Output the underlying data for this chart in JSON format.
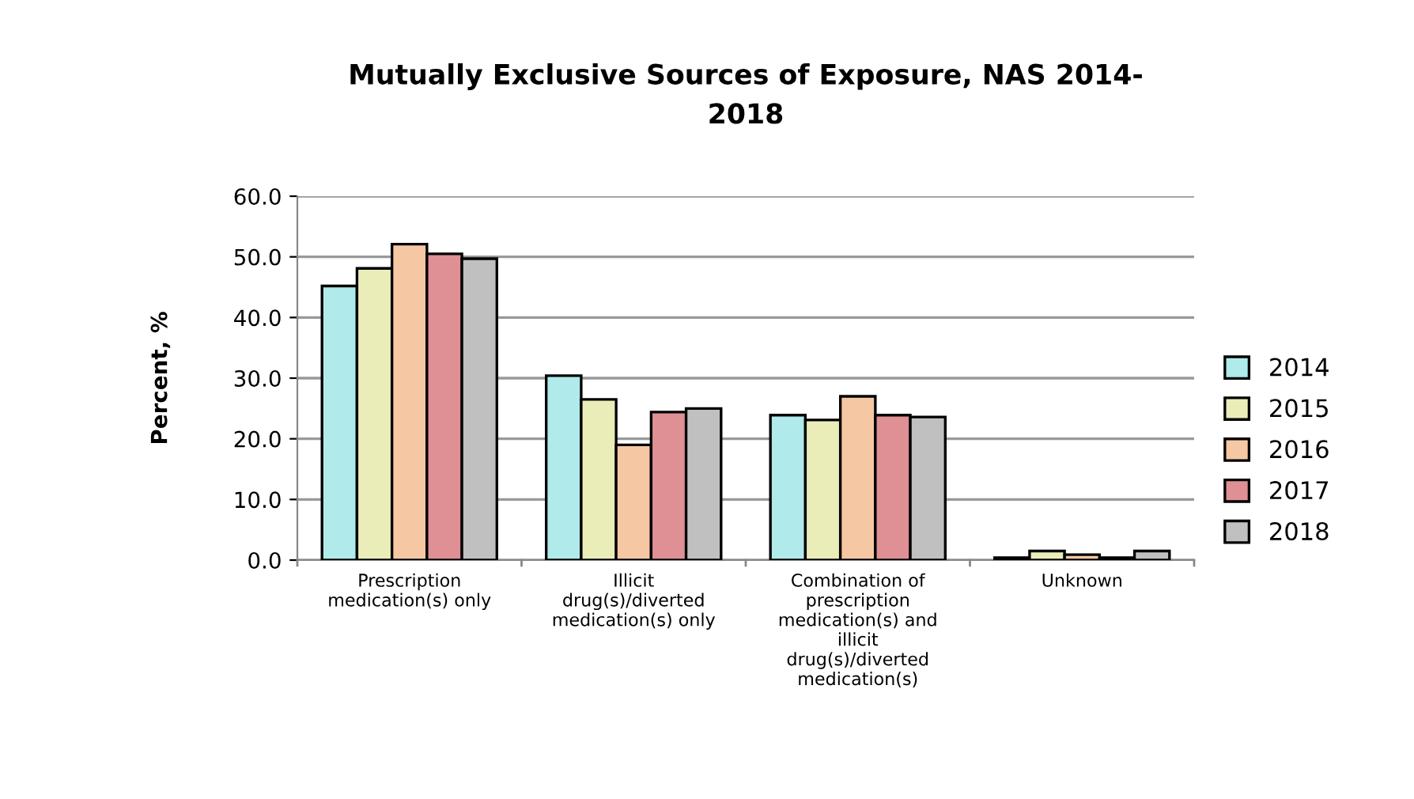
{
  "chart_data": {
    "type": "bar",
    "title": "Mutually Exclusive Sources of Exposure, NAS 2014-\n2018",
    "ylabel": "Percent, %",
    "categories": [
      "Prescription\nmedication(s) only",
      "Illicit\ndrug(s)/diverted\nmedication(s) only",
      "Combination of\nprescription\nmedication(s) and\nillicit\ndrug(s)/diverted\nmedication(s)",
      "Unknown"
    ],
    "series": [
      {
        "name": "2014",
        "color": "#b0eaea",
        "values": [
          45.2,
          30.4,
          23.9,
          0.4
        ]
      },
      {
        "name": "2015",
        "color": "#eaedb8",
        "values": [
          48.1,
          26.5,
          23.1,
          1.5
        ]
      },
      {
        "name": "2016",
        "color": "#f5c8a3",
        "values": [
          52.1,
          19.0,
          27.0,
          0.9
        ]
      },
      {
        "name": "2017",
        "color": "#de9095",
        "values": [
          50.5,
          24.4,
          23.9,
          0.4
        ]
      },
      {
        "name": "2018",
        "color": "#c0c0c0",
        "values": [
          49.7,
          25.0,
          23.6,
          1.5
        ]
      }
    ],
    "ylim": [
      0,
      60
    ],
    "yticks": [
      {
        "value": 0,
        "label": "0.0"
      },
      {
        "value": 10,
        "label": "10.0"
      },
      {
        "value": 20,
        "label": "20.0"
      },
      {
        "value": 30,
        "label": "30.0"
      },
      {
        "value": 40,
        "label": "40.0"
      },
      {
        "value": 50,
        "label": "50.0"
      },
      {
        "value": 60,
        "label": "60.0"
      }
    ],
    "grid": "y",
    "legend": "right"
  }
}
